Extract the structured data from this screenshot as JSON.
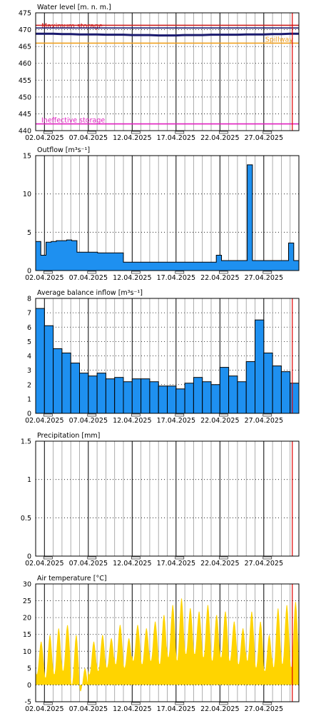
{
  "colors": {
    "axis": "#000000",
    "grid": "#000000",
    "level_line": "#1a1a6e",
    "max_storage": "#cc1f1f",
    "spillway": "#f0a020",
    "ineffective": "#e020c0",
    "outflow_fill": "#1e90f0",
    "inflow_fill": "#1e90f0",
    "temp_fill": "#ffd400",
    "current_time": "#e00000"
  },
  "x_axis": {
    "day_ticks": [
      "02.04.2025",
      "07.04.2025",
      "12.04.2025",
      "17.04.2025",
      "22.04.2025",
      "27.04.2025"
    ]
  },
  "chart_data": [
    {
      "type": "line",
      "title": "Water level [m. n. m.]",
      "ylim": [
        440,
        475
      ],
      "yticks": [
        "440",
        "445",
        "450",
        "455",
        "460",
        "465",
        "470",
        "475"
      ],
      "series": [
        {
          "values": [
            468.8,
            468.8,
            468.8,
            468.7,
            468.7,
            468.6,
            468.6,
            468.6,
            468.5,
            468.5,
            468.5,
            468.4,
            468.4,
            468.4,
            468.3,
            468.3,
            468.3,
            468.4,
            468.4,
            468.4,
            468.5,
            468.5,
            468.5,
            468.5,
            468.6,
            468.6,
            468.6,
            468.7,
            468.7,
            468.8,
            468.8
          ]
        }
      ],
      "reference_lines": [
        {
          "label": "Maximum storage",
          "value": 471.3,
          "color_key": "max_storage"
        },
        {
          "label": "",
          "value": 470.5,
          "color_key": "level_line"
        },
        {
          "label": "Spillway",
          "value": 466.0,
          "color_key": "spillway"
        },
        {
          "label": "Ineffective storage",
          "value": 442.0,
          "color_key": "ineffective"
        }
      ]
    },
    {
      "type": "area",
      "title": "Outflow [m³s⁻¹]",
      "ylim": [
        0,
        15
      ],
      "yticks": [
        "0",
        "5",
        "10",
        "15"
      ],
      "series": [
        {
          "values": [
            3.8,
            2.0,
            3.7,
            3.8,
            3.9,
            3.9,
            4.0,
            3.9,
            2.4,
            2.4,
            2.4,
            2.4,
            2.3,
            2.3,
            2.3,
            2.3,
            2.3,
            1.1,
            1.1,
            1.1,
            1.1,
            1.1,
            1.1,
            1.1,
            1.1,
            1.1,
            1.1,
            1.1,
            1.1,
            1.1,
            1.1,
            1.1,
            1.1,
            1.1,
            1.1,
            2.0,
            1.3,
            1.3,
            1.3,
            1.3,
            1.3,
            13.8,
            1.3,
            1.3,
            1.3,
            1.3,
            1.3,
            1.3,
            1.3,
            3.6,
            1.3
          ]
        }
      ]
    },
    {
      "type": "bar",
      "title": "Average balance inflow  [m³s⁻¹]",
      "ylim": [
        0,
        8
      ],
      "yticks": [
        "0",
        "1",
        "2",
        "3",
        "4",
        "5",
        "6",
        "7",
        "8"
      ],
      "series": [
        {
          "values": [
            7.3,
            6.1,
            4.5,
            4.2,
            3.5,
            2.8,
            2.6,
            2.8,
            2.4,
            2.5,
            2.2,
            2.4,
            2.4,
            2.2,
            1.9,
            1.9,
            1.7,
            2.1,
            2.5,
            2.2,
            2.0,
            3.2,
            2.6,
            2.2,
            3.6,
            6.5,
            4.2,
            3.3,
            2.9,
            2.1
          ]
        }
      ]
    },
    {
      "type": "bar",
      "title": "Precipitation [mm]",
      "ylim": [
        0,
        1.5
      ],
      "yticks": [
        "0",
        "0.5",
        "1",
        "1.5"
      ],
      "series": [
        {
          "values": []
        }
      ]
    },
    {
      "type": "area",
      "title": "Air temperature [°C]",
      "ylim": [
        -5,
        30
      ],
      "yticks": [
        "-5",
        "0",
        "5",
        "10",
        "15",
        "20",
        "25",
        "30"
      ],
      "series": [
        {
          "daily_min": [
            3,
            2,
            3,
            4,
            0,
            -2,
            3,
            4,
            5,
            6,
            5,
            7,
            6,
            7,
            6,
            8,
            7,
            9,
            9,
            8,
            7,
            8,
            7,
            6,
            7,
            5,
            4,
            5,
            6,
            5
          ],
          "daily_max": [
            13,
            15,
            17,
            18,
            15,
            5,
            13,
            15,
            14,
            18,
            14,
            18,
            17,
            19,
            21,
            24,
            26,
            23,
            22,
            24,
            21,
            22,
            19,
            17,
            22,
            19,
            15,
            23,
            24,
            25
          ]
        }
      ]
    }
  ]
}
